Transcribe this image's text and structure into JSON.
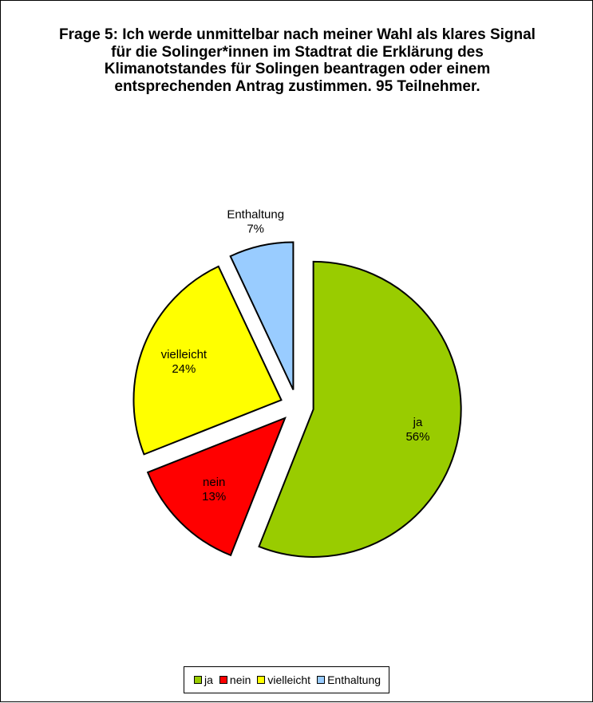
{
  "chart_data": {
    "type": "pie",
    "title": "Frage 5: Ich werde unmittelbar nach meiner Wahl als klares Signal für die Solinger*innen im Stadtrat die Erklärung des Klimanotstandes für Solingen beantragen oder einem entsprechenden Antrag zustimmen. 95 Teilnehmer.",
    "categories": [
      "ja",
      "nein",
      "vielleicht",
      "Enthaltung"
    ],
    "values": [
      56,
      13,
      24,
      7
    ],
    "value_labels": [
      "56%",
      "13%",
      "24%",
      "7%"
    ],
    "colors": [
      "#99cc00",
      "#ff0000",
      "#ffff00",
      "#99ccff"
    ],
    "exploded": true,
    "legend_position": "bottom"
  }
}
